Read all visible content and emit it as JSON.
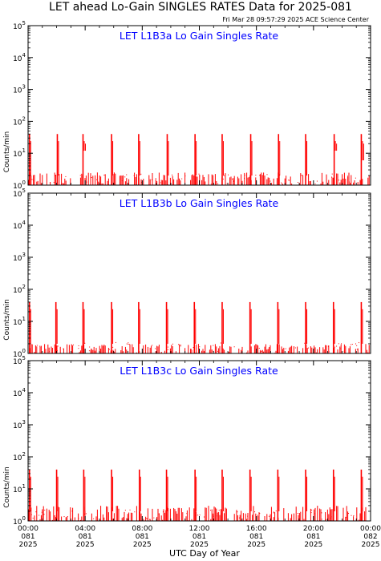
{
  "header": {
    "title": "LET ahead Lo-Gain SINGLES RATES Data for 2025-081",
    "timestamp": "Fri Mar 28 09:57:29 2025 ACE Science Center"
  },
  "xaxis": {
    "label": "UTC Day of Year",
    "ticks": [
      {
        "hour": 0,
        "lines": [
          "00:00",
          "081",
          "2025"
        ]
      },
      {
        "hour": 4,
        "lines": [
          "04:00",
          "081",
          "2025"
        ]
      },
      {
        "hour": 8,
        "lines": [
          "08:00",
          "081",
          "2025"
        ]
      },
      {
        "hour": 12,
        "lines": [
          "12:00",
          "081",
          "2025"
        ]
      },
      {
        "hour": 16,
        "lines": [
          "16:00",
          "081",
          "2025"
        ]
      },
      {
        "hour": 20,
        "lines": [
          "20:00",
          "081",
          "2025"
        ]
      },
      {
        "hour": 24,
        "lines": [
          "00:00",
          "082",
          "2025"
        ]
      }
    ]
  },
  "colors": {
    "data": "#ff0000",
    "title": "#0000ff",
    "axes": "#000000"
  },
  "chart_data": [
    {
      "type": "bar",
      "title": "LET L1B3a Lo Gain Singles Rate",
      "ylabel": "Counts/min",
      "yscale": "log",
      "ylim": [
        1,
        100000
      ],
      "xlim_hours": [
        0,
        24
      ],
      "baseline_max": 2.5,
      "spikes": [
        {
          "hour": 0.1,
          "value": 40
        },
        {
          "hour": 2.05,
          "value": 40
        },
        {
          "hour": 3.85,
          "value": 40,
          "dropout_to": 12
        },
        {
          "hour": 5.85,
          "value": 40
        },
        {
          "hour": 7.75,
          "value": 40
        },
        {
          "hour": 9.75,
          "value": 40
        },
        {
          "hour": 11.7,
          "value": 40
        },
        {
          "hour": 13.6,
          "value": 40
        },
        {
          "hour": 15.6,
          "value": 40
        },
        {
          "hour": 17.55,
          "value": 40
        },
        {
          "hour": 19.45,
          "value": 40
        },
        {
          "hour": 21.45,
          "value": 40,
          "dropout_to": 12
        },
        {
          "hour": 23.35,
          "value": 40,
          "dropout_to": 6
        }
      ]
    },
    {
      "type": "bar",
      "title": "LET L1B3b Lo Gain Singles Rate",
      "ylabel": "Counts/min",
      "yscale": "log",
      "ylim": [
        1,
        100000
      ],
      "xlim_hours": [
        0,
        24
      ],
      "baseline_max": 2,
      "spikes": [
        {
          "hour": 0.1,
          "value": 40
        },
        {
          "hour": 1.95,
          "value": 40
        },
        {
          "hour": 3.85,
          "value": 40
        },
        {
          "hour": 5.85,
          "value": 40
        },
        {
          "hour": 7.75,
          "value": 40
        },
        {
          "hour": 9.7,
          "value": 40
        },
        {
          "hour": 11.65,
          "value": 40
        },
        {
          "hour": 13.6,
          "value": 40
        },
        {
          "hour": 15.55,
          "value": 40
        },
        {
          "hour": 17.5,
          "value": 40
        },
        {
          "hour": 19.45,
          "value": 40
        },
        {
          "hour": 21.4,
          "value": 40
        },
        {
          "hour": 23.35,
          "value": 40
        }
      ]
    },
    {
      "type": "bar",
      "title": "LET L1B3c Lo Gain Singles Rate",
      "ylabel": "Counts/min",
      "yscale": "log",
      "ylim": [
        1,
        100000
      ],
      "xlim_hours": [
        0,
        24
      ],
      "baseline_max": 3,
      "spikes": [
        {
          "hour": 0.1,
          "value": 40
        },
        {
          "hour": 2.0,
          "value": 40
        },
        {
          "hour": 3.9,
          "value": 40
        },
        {
          "hour": 5.85,
          "value": 40
        },
        {
          "hour": 7.8,
          "value": 40
        },
        {
          "hour": 9.7,
          "value": 40
        },
        {
          "hour": 11.7,
          "value": 40
        },
        {
          "hour": 13.6,
          "value": 40
        },
        {
          "hour": 15.55,
          "value": 40
        },
        {
          "hour": 17.5,
          "value": 40
        },
        {
          "hour": 19.45,
          "value": 40
        },
        {
          "hour": 21.4,
          "value": 40
        },
        {
          "hour": 23.35,
          "value": 40
        }
      ]
    }
  ]
}
